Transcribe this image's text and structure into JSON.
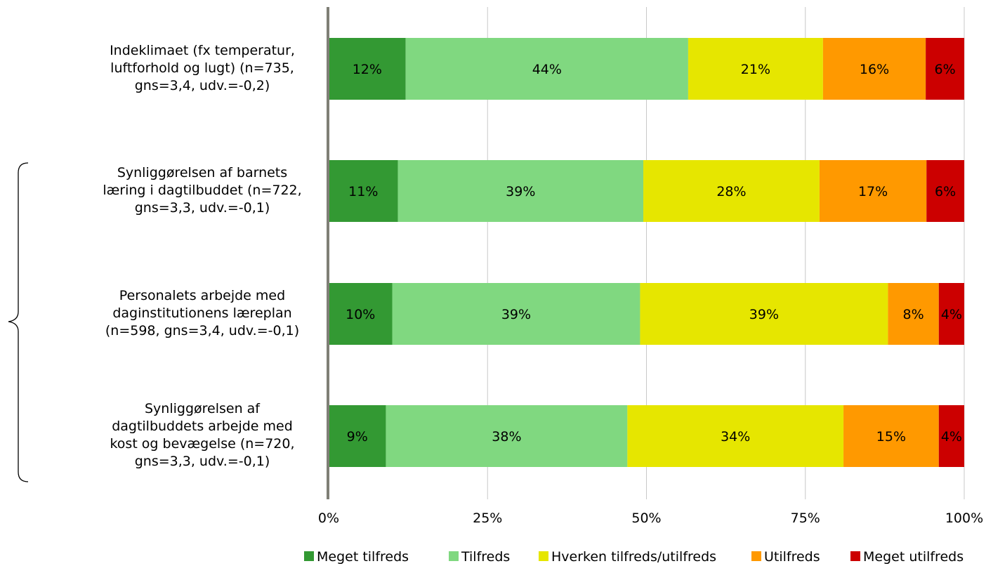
{
  "chart_data": {
    "type": "bar",
    "orientation": "horizontal",
    "stacked": true,
    "categories": [
      "Indeklimaet (fx temperatur, luftforhold og lugt) (n=735, gns=3,4, udv.=-0,2)",
      "Synliggørelsen af barnets læring i dagtilbuddet (n=722, gns=3,3, udv.=-0,1)",
      "Personalets arbejde med daginstitutionens læreplan (n=598, gns=3,4, udv.=-0,1)",
      "Synliggørelsen af dagtilbuddets arbejde med kost og bevægelse (n=720, gns=3,3, udv.=-0,1)"
    ],
    "category_lines": [
      [
        "Indeklimaet (fx temperatur,",
        "luftforhold og lugt) (n=735,",
        "gns=3,4, udv.=-0,2)"
      ],
      [
        "Synliggørelsen af barnets",
        "læring i dagtilbuddet (n=722,",
        "gns=3,3, udv.=-0,1)"
      ],
      [
        "Personalets arbejde med",
        "daginstitutionens læreplan",
        "(n=598, gns=3,4, udv.=-0,1)"
      ],
      [
        "Synliggørelsen af",
        "dagtilbuddets arbejde med",
        "kost og bevægelse (n=720,",
        "gns=3,3, udv.=-0,1)"
      ]
    ],
    "series": [
      {
        "name": "Meget tilfreds",
        "color": "#339933",
        "values": [
          12,
          11,
          10,
          9
        ],
        "labels": [
          "12%",
          "11%",
          "10%",
          "9%"
        ]
      },
      {
        "name": "Tilfreds",
        "color": "#80d880",
        "values": [
          44,
          39,
          39,
          38
        ],
        "labels": [
          "44%",
          "39%",
          "39%",
          "38%"
        ]
      },
      {
        "name": "Hverken tilfreds/utilfreds",
        "color": "#e6e600",
        "values": [
          21,
          28,
          39,
          34
        ],
        "labels": [
          "21%",
          "28%",
          "39%",
          "34%"
        ]
      },
      {
        "name": "Utilfreds",
        "color": "#ff9900",
        "values": [
          16,
          17,
          8,
          15
        ],
        "labels": [
          "16%",
          "17%",
          "8%",
          "15%"
        ]
      },
      {
        "name": "Meget utilfreds",
        "color": "#cc0000",
        "values": [
          6,
          6,
          4,
          4
        ],
        "labels": [
          "6%",
          "6%",
          "4%",
          "4%"
        ]
      }
    ],
    "xlim": [
      0,
      100
    ],
    "x_ticks": [
      "0%",
      "25%",
      "50%",
      "75%",
      "100%"
    ],
    "grid": true,
    "legend_position": "bottom",
    "annotation": "brace grouping last three categories"
  }
}
